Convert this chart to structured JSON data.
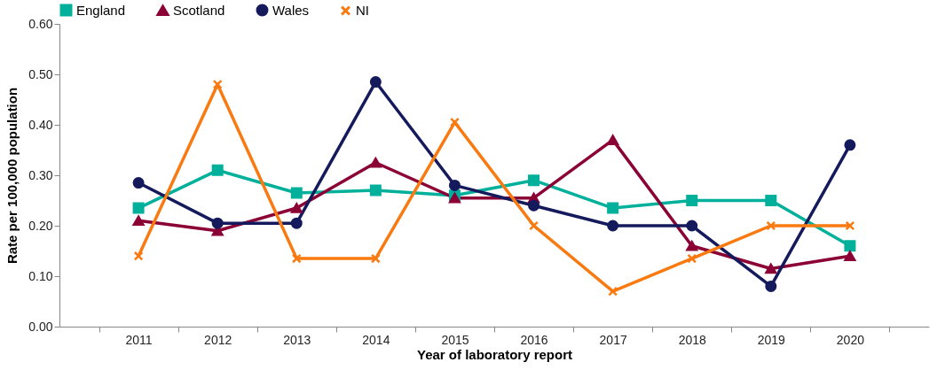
{
  "chart_data": {
    "type": "line",
    "xlabel": "Year of laboratory report",
    "ylabel": "Rate per 100,000 population",
    "categories": [
      "2011",
      "2012",
      "2013",
      "2014",
      "2015",
      "2016",
      "2017",
      "2018",
      "2019",
      "2020"
    ],
    "series": [
      {
        "name": "England",
        "color": "#00b09b",
        "marker": "square",
        "values": [
          0.235,
          0.31,
          0.265,
          0.27,
          0.26,
          0.29,
          0.235,
          0.25,
          0.25,
          0.16
        ]
      },
      {
        "name": "Scotland",
        "color": "#8b0035",
        "marker": "triangle",
        "values": [
          0.21,
          0.19,
          0.235,
          0.325,
          0.255,
          0.255,
          0.37,
          0.16,
          0.115,
          0.14
        ]
      },
      {
        "name": "Wales",
        "color": "#141a5c",
        "marker": "circle",
        "values": [
          0.285,
          0.205,
          0.205,
          0.485,
          0.28,
          0.24,
          0.2,
          0.2,
          0.08,
          0.36
        ]
      },
      {
        "name": "NI",
        "color": "#f97a11",
        "marker": "cross",
        "values": [
          0.14,
          0.48,
          0.135,
          0.135,
          0.405,
          0.2,
          0.07,
          0.135,
          0.2,
          0.2
        ]
      }
    ],
    "ylim": [
      0,
      0.6
    ],
    "yticks": [
      {
        "value": 0,
        "label": "0.00"
      },
      {
        "value": 0.1,
        "label": "0.10"
      },
      {
        "value": 0.2,
        "label": "0.20"
      },
      {
        "value": 0.3,
        "label": "0.30"
      },
      {
        "value": 0.4,
        "label": "0.40"
      },
      {
        "value": 0.5,
        "label": "0.50"
      },
      {
        "value": 0.6,
        "label": "0.60"
      }
    ],
    "grid": false,
    "legend": "top",
    "line_style": "solid"
  }
}
